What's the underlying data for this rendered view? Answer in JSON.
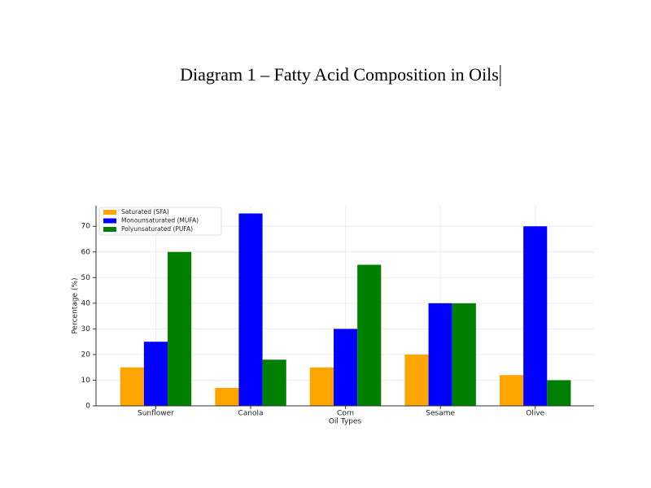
{
  "chart_data": {
    "type": "bar",
    "title": "Diagram 1 – Fatty Acid Composition in Oils",
    "x_label": "Oil Types",
    "y_label": "Percentage (%)",
    "categories": [
      "Sunflower",
      "Canola",
      "Corn",
      "Sesame",
      "Olive"
    ],
    "series": [
      {
        "name": "Saturated (SFA)",
        "color": "#ffa500",
        "values": [
          15,
          7,
          15,
          20,
          12
        ]
      },
      {
        "name": "Monounsaturated (MUFA)",
        "color": "#0000ff",
        "values": [
          25,
          75,
          30,
          40,
          70
        ]
      },
      {
        "name": "Polyunsaturated (PUFA)",
        "color": "#008000",
        "values": [
          60,
          18,
          55,
          40,
          10
        ]
      }
    ],
    "ylim": [
      0,
      78
    ],
    "yticks": [
      0,
      10,
      20,
      30,
      40,
      50,
      60,
      70
    ],
    "grid": true,
    "legend": "upper-left"
  }
}
